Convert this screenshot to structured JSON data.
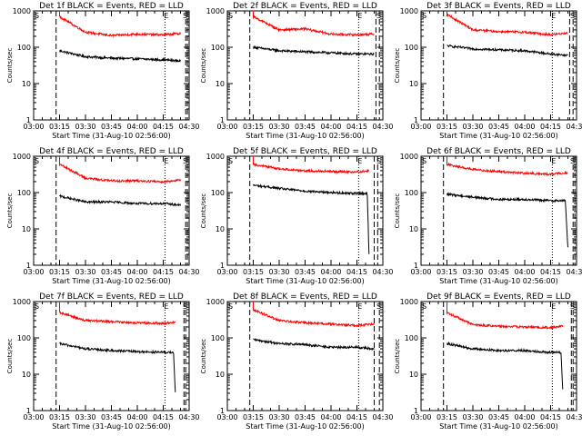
{
  "colors": {
    "events": "#000000",
    "lld": "#ff0000",
    "axes": "#000000",
    "background": "#ffffff"
  },
  "common": {
    "xlabel": "Start Time (31-Aug-10 02:56:00)",
    "ylabel": "Counts/sec",
    "x_tick_labels": [
      "03:00",
      "03:15",
      "03:30",
      "03:45",
      "04:00",
      "04:15",
      "04:30"
    ],
    "y_tick_labels": [
      "1",
      "10",
      "100",
      "1000"
    ],
    "markers": {
      "S": "S",
      "E": "E"
    }
  },
  "chart_data": [
    {
      "type": "line",
      "title": "Det 1f BLACK = Events, RED = LLD",
      "yscale": "log",
      "ylim": [
        1,
        1000
      ],
      "x": [
        "03:15",
        "03:30",
        "03:45",
        "04:00",
        "04:15",
        "04:25"
      ],
      "series": [
        {
          "name": "Events",
          "color": "#000000",
          "values": [
            80,
            55,
            50,
            48,
            45,
            42
          ]
        },
        {
          "name": "LLD",
          "color": "#ff0000",
          "values": [
            700,
            260,
            210,
            230,
            220,
            240
          ]
        }
      ],
      "vlines": [
        "03:13",
        "04:16",
        "04:28",
        "04:29"
      ],
      "markers": {
        "S": "03:00",
        "E": "04:17",
        "S2": "04:30"
      }
    },
    {
      "type": "line",
      "title": "Det 2f BLACK = Events, RED = LLD",
      "yscale": "log",
      "ylim": [
        1,
        1000
      ],
      "x": [
        "03:15",
        "03:30",
        "03:45",
        "04:00",
        "04:15",
        "04:25"
      ],
      "series": [
        {
          "name": "Events",
          "color": "#000000",
          "values": [
            100,
            80,
            75,
            70,
            65,
            65
          ]
        },
        {
          "name": "LLD",
          "color": "#ff0000",
          "values": [
            700,
            300,
            320,
            230,
            220,
            230
          ]
        }
      ],
      "vlines": [
        "03:13",
        "04:16",
        "04:26",
        "04:28"
      ],
      "markers": {
        "S": "03:00",
        "E": "04:17",
        "S2": "04:30"
      }
    },
    {
      "type": "line",
      "title": "Det 3f BLACK = Events, RED = LLD",
      "yscale": "log",
      "ylim": [
        1,
        1000
      ],
      "x": [
        "03:15",
        "03:30",
        "03:45",
        "04:00",
        "04:15",
        "04:25"
      ],
      "series": [
        {
          "name": "Events",
          "color": "#000000",
          "values": [
            110,
            90,
            85,
            80,
            65,
            60
          ]
        },
        {
          "name": "LLD",
          "color": "#ff0000",
          "values": [
            800,
            300,
            270,
            260,
            220,
            250
          ]
        }
      ],
      "vlines": [
        "03:13",
        "04:16",
        "04:26",
        "04:28"
      ],
      "markers": {
        "S": "03:00",
        "E": "04:17",
        "S2": "04:30"
      }
    },
    {
      "type": "line",
      "title": "Det 4f BLACK = Events, RED = LLD",
      "yscale": "log",
      "ylim": [
        1,
        1000
      ],
      "x": [
        "03:15",
        "03:30",
        "03:45",
        "04:00",
        "04:15",
        "04:25"
      ],
      "series": [
        {
          "name": "Events",
          "color": "#000000",
          "values": [
            80,
            55,
            55,
            50,
            50,
            45
          ]
        },
        {
          "name": "LLD",
          "color": "#ff0000",
          "values": [
            600,
            250,
            210,
            210,
            200,
            220
          ]
        }
      ],
      "vlines": [
        "03:13",
        "04:16",
        "04:28",
        "04:29"
      ],
      "markers": {
        "S": "03:00",
        "E": "04:17",
        "S2": "04:30"
      }
    },
    {
      "type": "line",
      "title": "Det 5f BLACK = Events, RED = LLD",
      "yscale": "log",
      "ylim": [
        1,
        1000
      ],
      "x": [
        "03:15",
        "03:30",
        "03:45",
        "04:00",
        "04:15",
        "04:22"
      ],
      "series": [
        {
          "name": "Events",
          "color": "#000000",
          "values": [
            160,
            130,
            110,
            100,
            95,
            2
          ]
        },
        {
          "name": "LLD",
          "color": "#ff0000",
          "values": [
            600,
            450,
            400,
            380,
            370,
            400
          ]
        }
      ],
      "vlines": [
        "03:13",
        "04:16",
        "04:25",
        "04:27"
      ],
      "markers": {
        "S": "03:00",
        "E": "04:17",
        "S2": "04:30"
      }
    },
    {
      "type": "line",
      "title": "Det 6f BLACK = Events, RED = LLD",
      "yscale": "log",
      "ylim": [
        1,
        1000
      ],
      "x": [
        "03:15",
        "03:30",
        "03:45",
        "04:00",
        "04:15",
        "04:25"
      ],
      "series": [
        {
          "name": "Events",
          "color": "#000000",
          "values": [
            90,
            75,
            65,
            65,
            60,
            3
          ]
        },
        {
          "name": "LLD",
          "color": "#ff0000",
          "values": [
            600,
            430,
            380,
            340,
            320,
            350
          ]
        }
      ],
      "vlines": [
        "03:13",
        "04:16",
        "04:28",
        "04:29"
      ],
      "markers": {
        "S": "03:00",
        "E": "04:17",
        "S2": "04:30"
      }
    },
    {
      "type": "line",
      "title": "Det 7f BLACK = Events, RED = LLD",
      "yscale": "log",
      "ylim": [
        1,
        1000
      ],
      "x": [
        "03:15",
        "03:30",
        "03:45",
        "04:00",
        "04:15",
        "04:22"
      ],
      "series": [
        {
          "name": "Events",
          "color": "#000000",
          "values": [
            70,
            50,
            45,
            42,
            40,
            3
          ]
        },
        {
          "name": "LLD",
          "color": "#ff0000",
          "values": [
            500,
            300,
            280,
            260,
            250,
            270
          ]
        }
      ],
      "vlines": [
        "03:13",
        "04:16",
        "04:27",
        "04:28"
      ],
      "markers": {
        "S": "03:00",
        "E": "04:17",
        "S2": "04:30"
      }
    },
    {
      "type": "line",
      "title": "Det 8f BLACK = Events, RED = LLD",
      "yscale": "log",
      "ylim": [
        1,
        1000
      ],
      "x": [
        "03:15",
        "03:30",
        "03:45",
        "04:00",
        "04:15",
        "04:25"
      ],
      "series": [
        {
          "name": "Events",
          "color": "#000000",
          "values": [
            90,
            70,
            65,
            55,
            55,
            50
          ]
        },
        {
          "name": "LLD",
          "color": "#ff0000",
          "values": [
            600,
            300,
            260,
            240,
            220,
            240
          ]
        }
      ],
      "vlines": [
        "03:13",
        "04:16",
        "04:25",
        "04:28"
      ],
      "markers": {
        "S": "03:00",
        "E": "04:17",
        "S2": "04:30"
      }
    },
    {
      "type": "line",
      "title": "Det 9f BLACK = Events, RED = LLD",
      "yscale": "log",
      "ylim": [
        1,
        1000
      ],
      "x": [
        "03:15",
        "03:30",
        "03:45",
        "04:00",
        "04:15",
        "04:22"
      ],
      "series": [
        {
          "name": "Events",
          "color": "#000000",
          "values": [
            70,
            50,
            45,
            45,
            40,
            4
          ]
        },
        {
          "name": "LLD",
          "color": "#ff0000",
          "values": [
            500,
            230,
            210,
            200,
            190,
            210
          ]
        }
      ],
      "vlines": [
        "03:13",
        "04:16",
        "04:27",
        "04:28"
      ],
      "markers": {
        "S": "03:00",
        "E": "04:17",
        "S2": "04:30"
      }
    }
  ]
}
